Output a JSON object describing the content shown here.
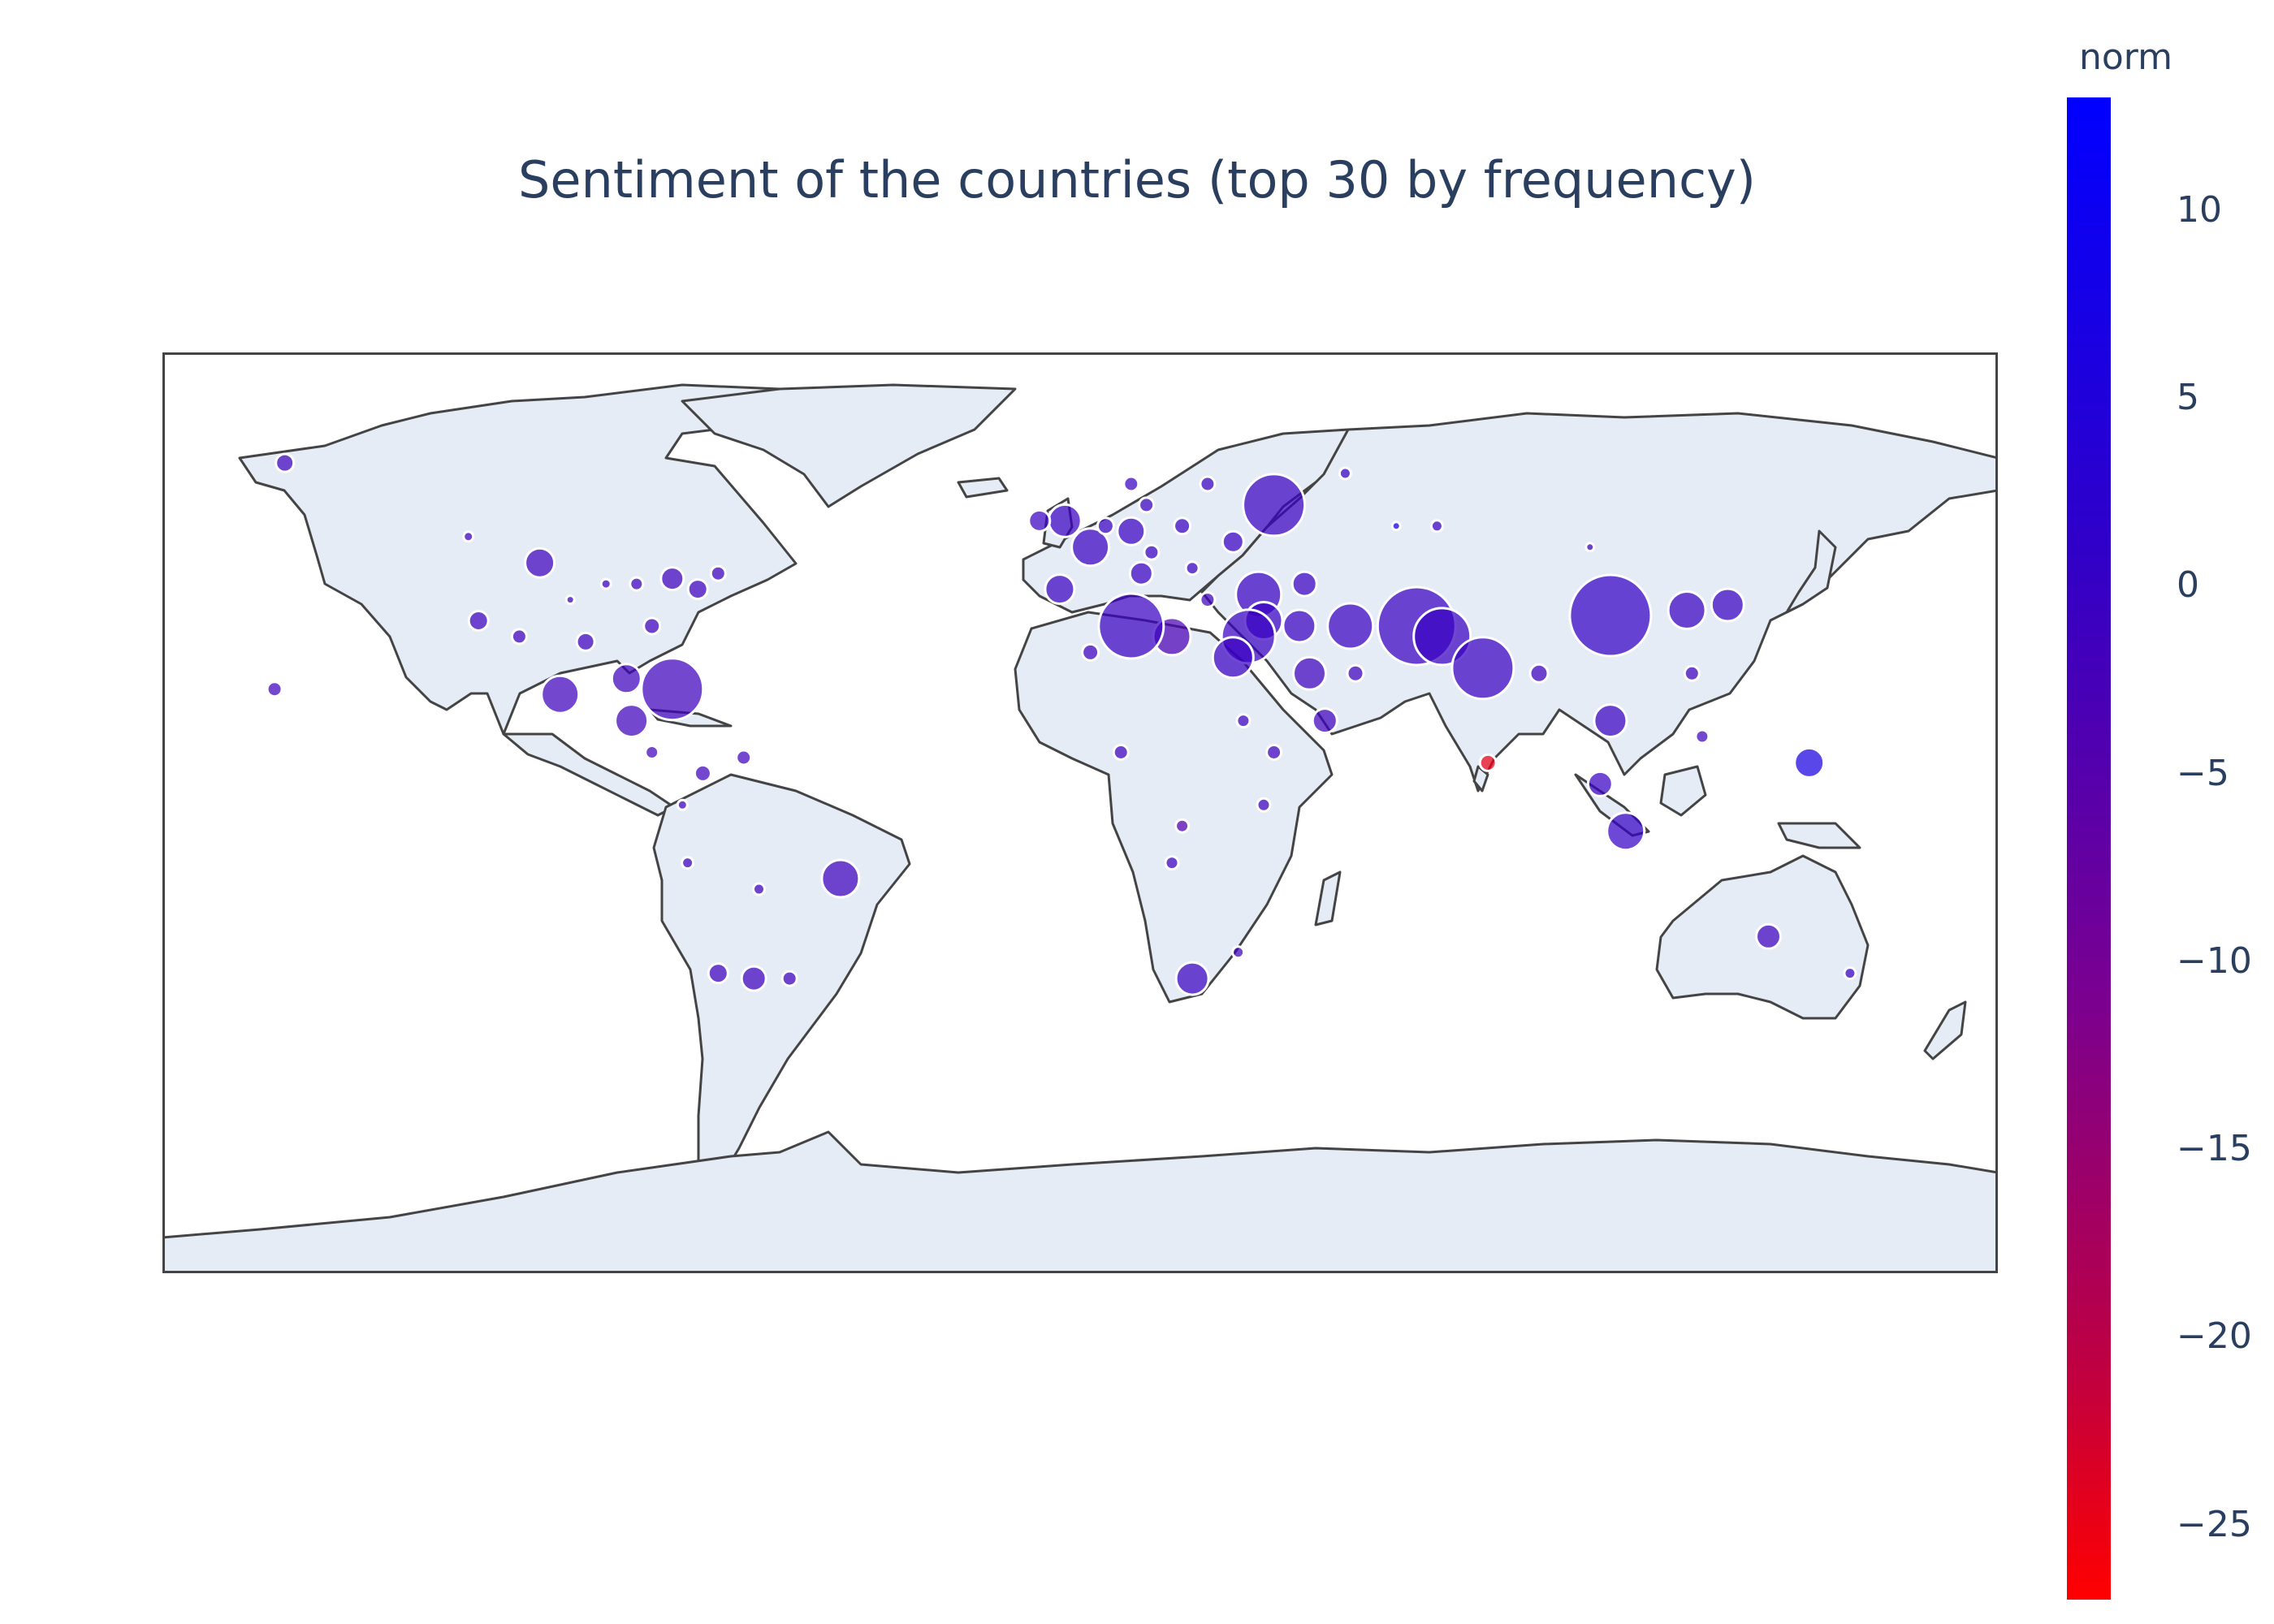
{
  "chart_data": {
    "type": "scatter",
    "title": "Sentiment of the countries (top 30 by frequency)",
    "projection": "equirectangular world map",
    "land_color": "#e5ecf6",
    "coastline_color": "#444444",
    "marker_outline": "#ffffff",
    "colorbar": {
      "title": "norm",
      "range": [
        -27,
        13
      ],
      "colorscale": [
        "#ff0000",
        "#7a0090",
        "#3000c8",
        "#0000ff"
      ],
      "ticks": [
        10,
        5,
        0,
        -5,
        -10,
        -15,
        -20,
        -25
      ],
      "tick_labels": [
        "10",
        "5",
        "0",
        "−5",
        "−10",
        "−15",
        "−20",
        "−25"
      ]
    },
    "points": [
      {
        "lon": -156,
        "lat": 64,
        "size": 22,
        "norm": -3
      },
      {
        "lon": -120,
        "lat": 50,
        "size": 12,
        "norm": -3
      },
      {
        "lon": -106,
        "lat": 45,
        "size": 36,
        "norm": -3
      },
      {
        "lon": -118,
        "lat": 34,
        "size": 24,
        "norm": -3
      },
      {
        "lon": -100,
        "lat": 38,
        "size": 10,
        "norm": -3
      },
      {
        "lon": -93,
        "lat": 41,
        "size": 12,
        "norm": -3
      },
      {
        "lon": -87,
        "lat": 41,
        "size": 16,
        "norm": -3
      },
      {
        "lon": -80,
        "lat": 42,
        "size": 28,
        "norm": -3
      },
      {
        "lon": -75,
        "lat": 40,
        "size": 24,
        "norm": -3
      },
      {
        "lon": -71,
        "lat": 43,
        "size": 18,
        "norm": -3
      },
      {
        "lon": -84,
        "lat": 33,
        "size": 20,
        "norm": -3
      },
      {
        "lon": -97,
        "lat": 30,
        "size": 22,
        "norm": -3
      },
      {
        "lon": -110,
        "lat": 31,
        "size": 18,
        "norm": -3
      },
      {
        "lon": -158,
        "lat": 21,
        "size": 18,
        "norm": -3
      },
      {
        "lon": -102,
        "lat": 20,
        "size": 46,
        "norm": -3
      },
      {
        "lon": -80,
        "lat": 21,
        "size": 76,
        "norm": -3
      },
      {
        "lon": -89,
        "lat": 23,
        "size": 36,
        "norm": -3
      },
      {
        "lon": -88,
        "lat": 15,
        "size": 40,
        "norm": -3
      },
      {
        "lon": -84,
        "lat": 9,
        "size": 16,
        "norm": -3
      },
      {
        "lon": -74,
        "lat": 5,
        "size": 20,
        "norm": -3
      },
      {
        "lon": -66,
        "lat": 8,
        "size": 18,
        "norm": -3
      },
      {
        "lon": -78,
        "lat": -1,
        "size": 12,
        "norm": -3
      },
      {
        "lon": -77,
        "lat": -12,
        "size": 14,
        "norm": -3
      },
      {
        "lon": -63,
        "lat": -17,
        "size": 14,
        "norm": -3
      },
      {
        "lon": -47,
        "lat": -15,
        "size": 46,
        "norm": -3
      },
      {
        "lon": -71,
        "lat": -33,
        "size": 24,
        "norm": -3
      },
      {
        "lon": -64,
        "lat": -34,
        "size": 30,
        "norm": -3
      },
      {
        "lon": -57,
        "lat": -34,
        "size": 18,
        "norm": -3
      },
      {
        "lon": -3,
        "lat": 53,
        "size": 40,
        "norm": -2
      },
      {
        "lon": -8,
        "lat": 53,
        "size": 26,
        "norm": -2
      },
      {
        "lon": 2,
        "lat": 48,
        "size": 46,
        "norm": -2
      },
      {
        "lon": 10,
        "lat": 51,
        "size": 34,
        "norm": -2
      },
      {
        "lon": 5,
        "lat": 52,
        "size": 20,
        "norm": -2
      },
      {
        "lon": 13,
        "lat": 56,
        "size": 18,
        "norm": -2
      },
      {
        "lon": 10,
        "lat": 60,
        "size": 18,
        "norm": -2
      },
      {
        "lon": 25,
        "lat": 60,
        "size": 18,
        "norm": -2
      },
      {
        "lon": 20,
        "lat": 52,
        "size": 20,
        "norm": -2
      },
      {
        "lon": 14,
        "lat": 47,
        "size": 18,
        "norm": -2
      },
      {
        "lon": 12,
        "lat": 43,
        "size": 28,
        "norm": -2
      },
      {
        "lon": -4,
        "lat": 40,
        "size": 36,
        "norm": -2
      },
      {
        "lon": 22,
        "lat": 44,
        "size": 16,
        "norm": -2
      },
      {
        "lon": 25,
        "lat": 38,
        "size": 18,
        "norm": -3
      },
      {
        "lon": 38,
        "lat": 56,
        "size": 76,
        "norm": -2
      },
      {
        "lon": 30,
        "lat": 49,
        "size": 26,
        "norm": -2
      },
      {
        "lon": 35,
        "lat": 39,
        "size": 56,
        "norm": -2
      },
      {
        "lon": 44,
        "lat": 41,
        "size": 30,
        "norm": -2
      },
      {
        "lon": 36,
        "lat": 34,
        "size": 46,
        "norm": -2
      },
      {
        "lon": 33,
        "lat": 31,
        "size": 66,
        "norm": -2
      },
      {
        "lon": 43,
        "lat": 33,
        "size": 40,
        "norm": -2
      },
      {
        "lon": 53,
        "lat": 33,
        "size": 56,
        "norm": -2
      },
      {
        "lon": 66,
        "lat": 33,
        "size": 96,
        "norm": -2
      },
      {
        "lon": 71,
        "lat": 31,
        "size": 70,
        "norm": -2
      },
      {
        "lon": 79,
        "lat": 25,
        "size": 76,
        "norm": -2
      },
      {
        "lon": 45,
        "lat": 24,
        "size": 40,
        "norm": -3
      },
      {
        "lon": 54,
        "lat": 24,
        "size": 20,
        "norm": -3
      },
      {
        "lon": 48,
        "lat": 15,
        "size": 30,
        "norm": -3
      },
      {
        "lon": 30,
        "lat": 27,
        "size": 50,
        "norm": -2
      },
      {
        "lon": 18,
        "lat": 31,
        "size": 46,
        "norm": -5
      },
      {
        "lon": 10,
        "lat": 33,
        "size": 80,
        "norm": -2
      },
      {
        "lon": 2,
        "lat": 28,
        "size": 20,
        "norm": -3
      },
      {
        "lon": 38,
        "lat": 9,
        "size": 18,
        "norm": -3
      },
      {
        "lon": 36,
        "lat": -1,
        "size": 16,
        "norm": -3
      },
      {
        "lon": 32,
        "lat": 15,
        "size": 16,
        "norm": -3
      },
      {
        "lon": 8,
        "lat": 9,
        "size": 18,
        "norm": -3
      },
      {
        "lon": 20,
        "lat": -5,
        "size": 16,
        "norm": -7
      },
      {
        "lon": 18,
        "lat": -12,
        "size": 16,
        "norm": -3
      },
      {
        "lon": 22,
        "lat": -34,
        "size": 40,
        "norm": -2
      },
      {
        "lon": 31,
        "lat": -29,
        "size": 14,
        "norm": -3
      },
      {
        "lon": 80,
        "lat": 7,
        "size": 20,
        "norm": -25
      },
      {
        "lon": 90,
        "lat": 24,
        "size": 22,
        "norm": -3
      },
      {
        "lon": 104,
        "lat": 35,
        "size": 100,
        "norm": -1
      },
      {
        "lon": 119,
        "lat": 36,
        "size": 46,
        "norm": -2
      },
      {
        "lon": 127,
        "lat": 37,
        "size": 40,
        "norm": -2
      },
      {
        "lon": 120,
        "lat": 24,
        "size": 18,
        "norm": -3
      },
      {
        "lon": 104,
        "lat": 15,
        "size": 40,
        "norm": -2
      },
      {
        "lon": 102,
        "lat": 3,
        "size": 30,
        "norm": -2
      },
      {
        "lon": 107,
        "lat": -6,
        "size": 46,
        "norm": -1
      },
      {
        "lon": 122,
        "lat": 12,
        "size": 16,
        "norm": -3
      },
      {
        "lon": 143,
        "lat": 7,
        "size": 36,
        "norm": 6
      },
      {
        "lon": 135,
        "lat": -26,
        "size": 30,
        "norm": -3
      },
      {
        "lon": 151,
        "lat": -33,
        "size": 14,
        "norm": -2
      },
      {
        "lon": 52,
        "lat": 62,
        "size": 14,
        "norm": -2
      },
      {
        "lon": 70,
        "lat": 52,
        "size": 14,
        "norm": -2
      },
      {
        "lon": 100,
        "lat": 48,
        "size": 10,
        "norm": -2
      },
      {
        "lon": 62,
        "lat": 52,
        "size": 10,
        "norm": 8
      }
    ]
  }
}
